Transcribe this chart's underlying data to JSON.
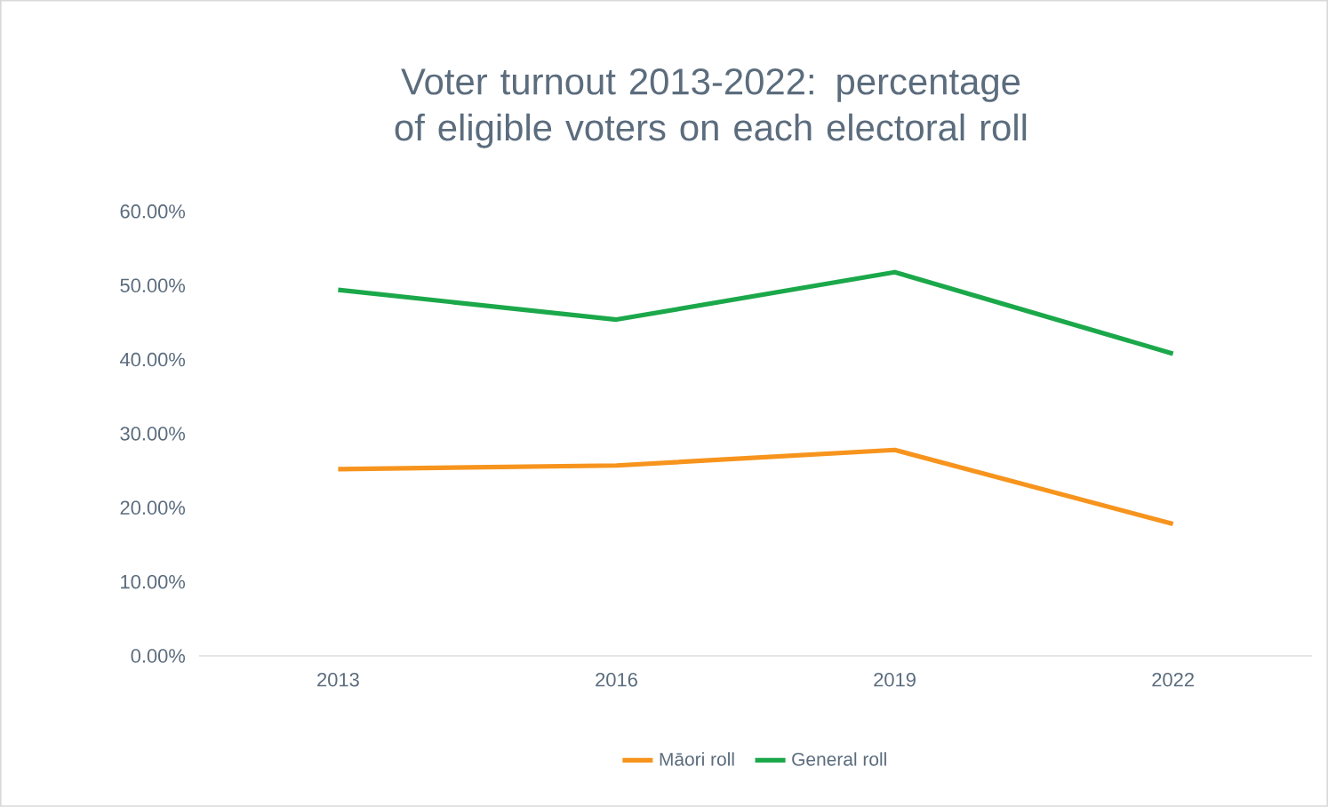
{
  "chart_data": {
    "type": "line",
    "title": "Voter turnout 2013-2022: percentage of eligible voters on each electoral roll",
    "categories": [
      "2013",
      "2016",
      "2019",
      "2022"
    ],
    "series": [
      {
        "name": "Māori roll",
        "color": "#f7941d",
        "values": [
          25.2,
          25.7,
          27.8,
          17.8
        ]
      },
      {
        "name": "General roll",
        "color": "#1ba84a",
        "values": [
          49.4,
          45.4,
          51.8,
          40.8
        ]
      }
    ],
    "ylim": [
      0,
      60
    ],
    "yticks": [
      {
        "value": 0,
        "label": "0.00%"
      },
      {
        "value": 10,
        "label": "10.00%"
      },
      {
        "value": 20,
        "label": "20.00%"
      },
      {
        "value": 30,
        "label": "30.00%"
      },
      {
        "value": 40,
        "label": "40.00%"
      },
      {
        "value": 50,
        "label": "50.00%"
      },
      {
        "value": 60,
        "label": "60.00%"
      }
    ],
    "grid": false,
    "legend": "bottom",
    "marker": "none",
    "line_style": "solid"
  }
}
